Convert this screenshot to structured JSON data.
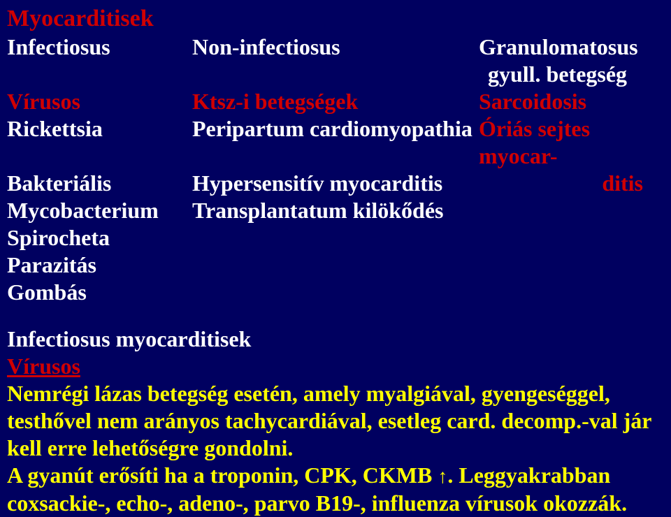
{
  "title": "Myocarditisek",
  "headers": {
    "col1": "Infectiosus",
    "col2": "Non-infectiosus",
    "col3_l1": "Granulomatosus",
    "col3_l2": "gyull. betegség"
  },
  "rows": {
    "r1c1": "Vírusos",
    "r1c2": "Ktsz-i betegségek",
    "r1c3": "Sarcoidosis",
    "r2c1": "Rickettsia",
    "r2c2": "Peripartum cardiomyopathia",
    "r2c3": "Óriás sejtes myocar-",
    "r3c1": "Bakteriális",
    "r3c2": "Hypersensitív myocarditis",
    "r3c3": "ditis",
    "r4c1": "Mycobacterium",
    "r4c2": "Transplantatum kilökődés",
    "r5c1": "Spirocheta",
    "r6c1": "Parazitás",
    "r7c1": "Gombás"
  },
  "sec2": {
    "h1": "Infectiosus myocarditisek",
    "h2": "Vírusos",
    "body_l1": "Nemrégi lázas betegség esetén, amely myalgiával, gyengeséggel,",
    "body_l2": "testhővel nem arányos tachycardiával, esetleg card. decomp.-val jár",
    "body_l3": "kell erre lehetőségre gondolni.",
    "body_l4a": "A gyanút erősíti ha a troponin, CPK, CKMB ",
    "arrow": "↑",
    "body_l4b": ". Leggyakrabban",
    "body_l5": "coxsackie-, echo-, adeno-, parvo B19-, influenza vírusok okozzák."
  },
  "colors": {
    "bg": "#000060",
    "title": "#d00000",
    "white": "#ffffff",
    "red": "#d00000",
    "yellow": "#ffff00"
  }
}
